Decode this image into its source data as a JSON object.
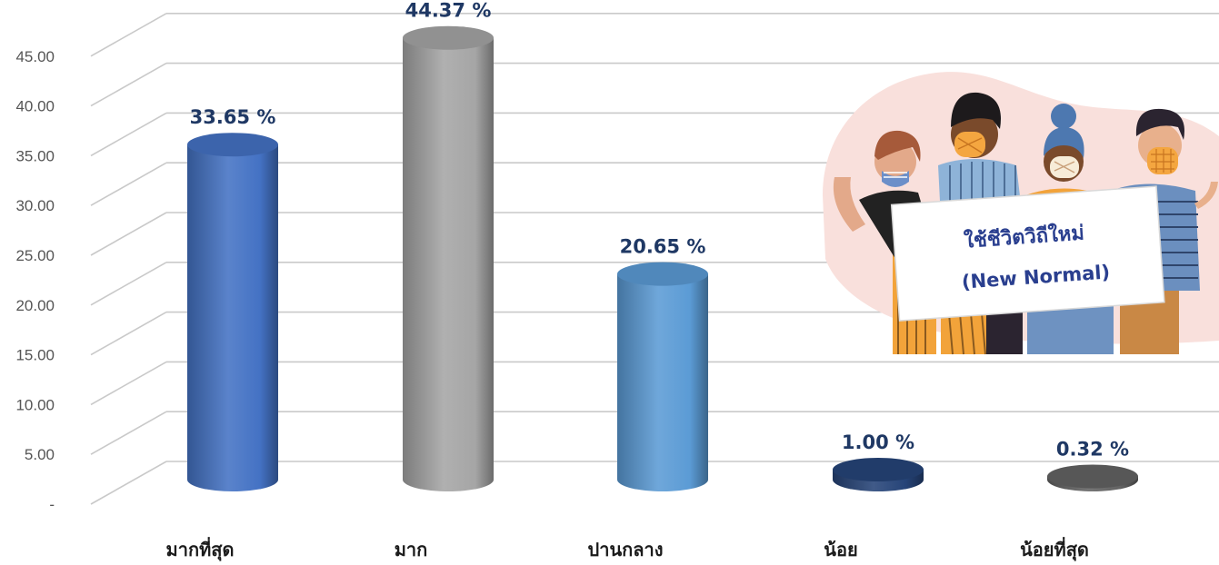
{
  "chart_data": {
    "type": "bar",
    "style": "3d-cylinder",
    "categories": [
      "มากที่สุด",
      "มาก",
      "ปานกลาง",
      "น้อย",
      "น้อยที่สุด"
    ],
    "values": [
      33.65,
      44.37,
      20.65,
      1.0,
      0.32
    ],
    "data_labels": [
      "33.65 %",
      "44.37 %",
      "20.65 %",
      "1.00 %",
      "0.32 %"
    ],
    "y_ticks": [
      "-",
      "5.00",
      "10.00",
      "15.00",
      "20.00",
      "25.00",
      "30.00",
      "35.00",
      "40.00",
      "45.00"
    ],
    "ylim": [
      0,
      50
    ],
    "grid": true,
    "colors": [
      "#4472c4",
      "#a5a5a5",
      "#5b9bd5",
      "#264478",
      "#636363"
    ],
    "title": "",
    "xlabel": "",
    "ylabel": ""
  },
  "illustration": {
    "sign_line1": "ใช้ชีวิตวิถีใหม่",
    "sign_line2": "(New Normal)",
    "colors": {
      "blob": "#f9e0dc",
      "sign": "#ffffff",
      "text": "#2a3f8f",
      "mask": "#f4a640"
    }
  }
}
